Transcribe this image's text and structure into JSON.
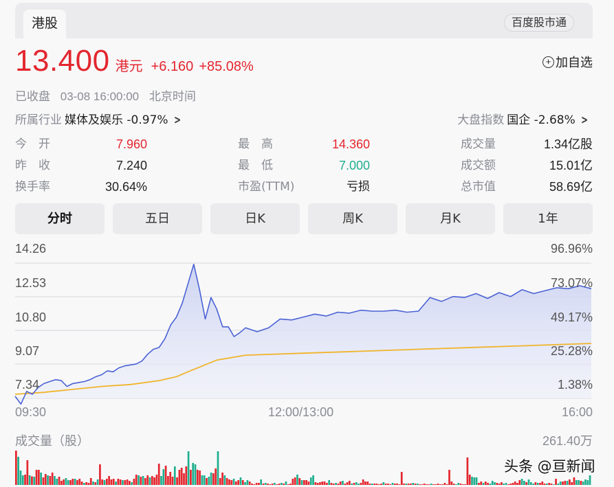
{
  "header": {
    "market_tab": "港股",
    "source_pill": "百度股市通"
  },
  "quote": {
    "price": "13.400",
    "currency": "港元",
    "change": "+6.160",
    "change_pct": "+85.08%",
    "add_watch_icon": "plus-circle-icon",
    "add_watch_label": "加自选",
    "status": "已收盘",
    "datetime": "03-08 16:00:00",
    "timezone": "北京时间"
  },
  "industry": {
    "label": "所属行业",
    "name": "媒体及娱乐",
    "change": "-0.97%"
  },
  "market_index": {
    "label": "大盘指数",
    "name": "国企",
    "change": "-2.68%"
  },
  "stats": [
    {
      "key": "今　开",
      "value": "7.960",
      "color": "red"
    },
    {
      "key": "最　高",
      "value": "14.360",
      "color": "red"
    },
    {
      "key": "成交量",
      "value": "1.34亿股",
      "color": "dark"
    },
    {
      "key": "昨　收",
      "value": "7.240",
      "color": "dark"
    },
    {
      "key": "最　低",
      "value": "7.000",
      "color": "green"
    },
    {
      "key": "成交额",
      "value": "15.01亿",
      "color": "dark"
    },
    {
      "key": "换手率",
      "value": "30.64%",
      "color": "dark"
    },
    {
      "key": "市盈(TTM)",
      "value": "亏损",
      "color": "dark"
    },
    {
      "key": "总市值",
      "value": "58.69亿",
      "color": "dark"
    }
  ],
  "periods": [
    {
      "label": "分时",
      "active": true
    },
    {
      "label": "五日",
      "active": false
    },
    {
      "label": "日K",
      "active": false
    },
    {
      "label": "周K",
      "active": false
    },
    {
      "label": "月K",
      "active": false
    },
    {
      "label": "1年",
      "active": false
    }
  ],
  "volume": {
    "title": "成交量（股）",
    "max_label": "261.40万"
  },
  "watermark": "头条 @亘新闻",
  "colors": {
    "up": "#e3262e",
    "down": "#1fae8d",
    "price_line": "#4a62d4",
    "avg_line": "#f0b429",
    "fill": "#dfe3f6"
  },
  "chart_data": {
    "type": "line",
    "title": "分时",
    "x_ticks": [
      "09:30",
      "12:00/13:00",
      "16:00"
    ],
    "y_ticks_left": [
      "14.26",
      "12.53",
      "10.80",
      "9.07",
      "7.34"
    ],
    "y_ticks_right": [
      "96.96%",
      "73.07%",
      "49.17%",
      "25.28%",
      "1.38%"
    ],
    "ylim": [
      7.34,
      14.26
    ],
    "grid": true,
    "series": [
      {
        "name": "价格",
        "x": [
          0,
          0.01,
          0.02,
          0.03,
          0.04,
          0.05,
          0.06,
          0.07,
          0.08,
          0.09,
          0.1,
          0.11,
          0.12,
          0.13,
          0.14,
          0.15,
          0.16,
          0.17,
          0.18,
          0.19,
          0.2,
          0.21,
          0.22,
          0.23,
          0.24,
          0.25,
          0.26,
          0.27,
          0.28,
          0.29,
          0.3,
          0.31,
          0.32,
          0.33,
          0.34,
          0.35,
          0.36,
          0.37,
          0.38,
          0.39,
          0.4,
          0.42,
          0.44,
          0.46,
          0.48,
          0.5,
          0.52,
          0.54,
          0.56,
          0.58,
          0.6,
          0.62,
          0.64,
          0.66,
          0.68,
          0.7,
          0.72,
          0.74,
          0.76,
          0.78,
          0.8,
          0.82,
          0.84,
          0.86,
          0.88,
          0.9,
          0.92,
          0.94,
          0.96,
          0.98,
          1.0
        ],
        "values": [
          7.45,
          7.05,
          7.7,
          7.55,
          7.9,
          8.1,
          8.2,
          8.3,
          8.25,
          7.95,
          8.1,
          8.15,
          8.2,
          8.3,
          8.45,
          8.55,
          8.75,
          8.7,
          8.9,
          9.0,
          9.05,
          9.1,
          9.25,
          9.6,
          9.85,
          9.95,
          10.4,
          11.1,
          11.5,
          12.2,
          13.2,
          14.2,
          12.9,
          11.4,
          12.5,
          11.9,
          11.0,
          11.0,
          10.5,
          10.7,
          10.95,
          10.75,
          10.95,
          11.4,
          11.35,
          11.5,
          11.65,
          11.55,
          11.75,
          11.7,
          11.85,
          11.8,
          11.8,
          11.85,
          11.75,
          11.8,
          12.5,
          12.3,
          12.55,
          12.5,
          12.7,
          12.45,
          12.75,
          12.55,
          12.9,
          12.7,
          12.85,
          13.0,
          12.95,
          13.1,
          12.95
        ]
      },
      {
        "name": "均价",
        "x": [
          0,
          0.05,
          0.1,
          0.15,
          0.2,
          0.25,
          0.28,
          0.3,
          0.35,
          0.4,
          0.5,
          0.6,
          0.7,
          0.8,
          0.9,
          1.0
        ],
        "values": [
          7.55,
          7.65,
          7.8,
          7.95,
          8.05,
          8.25,
          8.45,
          8.7,
          9.3,
          9.55,
          9.65,
          9.75,
          9.85,
          9.95,
          10.05,
          10.15
        ]
      }
    ],
    "volume_bars_max": "261.40万",
    "volume_bars": [
      [
        100,
        "u"
      ],
      [
        82,
        "d"
      ],
      [
        42,
        "d"
      ],
      [
        28,
        "d"
      ],
      [
        30,
        "u"
      ],
      [
        72,
        "u"
      ],
      [
        28,
        "d"
      ],
      [
        25,
        "u"
      ],
      [
        24,
        "d"
      ],
      [
        44,
        "u"
      ],
      [
        44,
        "u"
      ],
      [
        36,
        "d"
      ],
      [
        22,
        "u"
      ],
      [
        32,
        "u"
      ],
      [
        28,
        "d"
      ],
      [
        26,
        "u"
      ],
      [
        36,
        "u"
      ],
      [
        26,
        "d"
      ],
      [
        18,
        "d"
      ],
      [
        24,
        "u"
      ],
      [
        12,
        "u"
      ],
      [
        16,
        "u"
      ],
      [
        20,
        "d"
      ],
      [
        14,
        "d"
      ],
      [
        14,
        "u"
      ],
      [
        18,
        "u"
      ],
      [
        18,
        "d"
      ],
      [
        14,
        "u"
      ],
      [
        18,
        "u"
      ],
      [
        10,
        "u"
      ],
      [
        6,
        "d"
      ],
      [
        8,
        "u"
      ],
      [
        6,
        "u"
      ],
      [
        20,
        "u"
      ],
      [
        10,
        "d"
      ],
      [
        8,
        "u"
      ],
      [
        16,
        "d"
      ],
      [
        60,
        "u"
      ],
      [
        16,
        "u"
      ],
      [
        14,
        "d"
      ],
      [
        18,
        "u"
      ],
      [
        26,
        "u"
      ],
      [
        16,
        "u"
      ],
      [
        18,
        "u"
      ],
      [
        10,
        "d"
      ],
      [
        18,
        "u"
      ],
      [
        16,
        "u"
      ],
      [
        14,
        "d"
      ],
      [
        14,
        "u"
      ],
      [
        16,
        "u"
      ],
      [
        12,
        "u"
      ],
      [
        8,
        "d"
      ],
      [
        18,
        "u"
      ],
      [
        30,
        "u"
      ],
      [
        28,
        "d"
      ],
      [
        24,
        "u"
      ],
      [
        26,
        "d"
      ],
      [
        20,
        "u"
      ],
      [
        28,
        "u"
      ],
      [
        22,
        "d"
      ],
      [
        26,
        "u"
      ],
      [
        22,
        "u"
      ],
      [
        30,
        "u"
      ],
      [
        62,
        "u"
      ],
      [
        26,
        "d"
      ],
      [
        46,
        "d"
      ],
      [
        56,
        "u"
      ],
      [
        26,
        "u"
      ],
      [
        38,
        "u"
      ],
      [
        24,
        "u"
      ],
      [
        54,
        "d"
      ],
      [
        22,
        "u"
      ],
      [
        44,
        "u"
      ],
      [
        50,
        "u"
      ],
      [
        34,
        "u"
      ],
      [
        54,
        "u"
      ],
      [
        98,
        "d"
      ],
      [
        44,
        "u"
      ],
      [
        64,
        "d"
      ],
      [
        60,
        "d"
      ],
      [
        44,
        "u"
      ],
      [
        42,
        "u"
      ],
      [
        28,
        "d"
      ],
      [
        28,
        "d"
      ],
      [
        20,
        "u"
      ],
      [
        24,
        "d"
      ],
      [
        36,
        "d"
      ],
      [
        34,
        "u"
      ],
      [
        48,
        "u"
      ],
      [
        98,
        "d"
      ],
      [
        20,
        "u"
      ],
      [
        36,
        "u"
      ],
      [
        28,
        "d"
      ],
      [
        20,
        "u"
      ],
      [
        16,
        "u"
      ],
      [
        14,
        "u"
      ],
      [
        18,
        "d"
      ],
      [
        10,
        "u"
      ],
      [
        14,
        "u"
      ],
      [
        22,
        "d"
      ],
      [
        14,
        "u"
      ],
      [
        8,
        "d"
      ],
      [
        14,
        "d"
      ],
      [
        10,
        "u"
      ],
      [
        4,
        "u"
      ],
      [
        2,
        "u"
      ],
      [
        6,
        "u"
      ],
      [
        6,
        "u"
      ],
      [
        16,
        "d"
      ],
      [
        4,
        "u"
      ],
      [
        6,
        "d"
      ],
      [
        4,
        "u"
      ],
      [
        2,
        "u"
      ],
      [
        4,
        "u"
      ],
      [
        6,
        "d"
      ],
      [
        2,
        "u"
      ],
      [
        4,
        "u"
      ],
      [
        6,
        "d"
      ],
      [
        4,
        "u"
      ],
      [
        10,
        "d"
      ],
      [
        2,
        "u"
      ],
      [
        4,
        "u"
      ],
      [
        18,
        "u"
      ],
      [
        22,
        "u"
      ],
      [
        30,
        "d"
      ],
      [
        20,
        "u"
      ],
      [
        14,
        "d"
      ],
      [
        14,
        "u"
      ],
      [
        14,
        "u"
      ],
      [
        10,
        "u"
      ],
      [
        22,
        "d"
      ],
      [
        28,
        "d"
      ],
      [
        8,
        "u"
      ],
      [
        6,
        "u"
      ],
      [
        8,
        "u"
      ],
      [
        10,
        "u"
      ],
      [
        10,
        "u"
      ],
      [
        6,
        "u"
      ],
      [
        14,
        "d"
      ],
      [
        6,
        "u"
      ],
      [
        4,
        "u"
      ],
      [
        6,
        "d"
      ],
      [
        4,
        "u"
      ],
      [
        10,
        "u"
      ],
      [
        12,
        "d"
      ],
      [
        4,
        "u"
      ],
      [
        8,
        "u"
      ],
      [
        12,
        "u"
      ],
      [
        4,
        "d"
      ],
      [
        6,
        "u"
      ],
      [
        8,
        "d"
      ],
      [
        4,
        "d"
      ],
      [
        6,
        "u"
      ],
      [
        16,
        "u"
      ],
      [
        10,
        "u"
      ],
      [
        10,
        "u"
      ],
      [
        4,
        "u"
      ],
      [
        4,
        "d"
      ],
      [
        4,
        "u"
      ],
      [
        4,
        "u"
      ],
      [
        2,
        "u"
      ],
      [
        4,
        "u"
      ],
      [
        8,
        "d"
      ],
      [
        4,
        "u"
      ],
      [
        4,
        "u"
      ],
      [
        2,
        "u"
      ],
      [
        6,
        "d"
      ],
      [
        4,
        "u"
      ],
      [
        4,
        "u"
      ],
      [
        2,
        "u"
      ],
      [
        38,
        "u"
      ],
      [
        4,
        "u"
      ],
      [
        4,
        "d"
      ],
      [
        4,
        "u"
      ],
      [
        4,
        "u"
      ],
      [
        6,
        "d"
      ],
      [
        4,
        "u"
      ],
      [
        4,
        "d"
      ],
      [
        2,
        "u"
      ],
      [
        2,
        "u"
      ],
      [
        4,
        "u"
      ],
      [
        2,
        "u"
      ],
      [
        2,
        "u"
      ],
      [
        4,
        "d"
      ],
      [
        2,
        "u"
      ],
      [
        2,
        "u"
      ],
      [
        4,
        "u"
      ],
      [
        2,
        "u"
      ],
      [
        2,
        "u"
      ],
      [
        6,
        "u"
      ],
      [
        2,
        "u"
      ],
      [
        44,
        "u"
      ],
      [
        10,
        "u"
      ],
      [
        4,
        "u"
      ],
      [
        2,
        "d"
      ],
      [
        6,
        "d"
      ],
      [
        4,
        "u"
      ],
      [
        2,
        "u"
      ],
      [
        2,
        "u"
      ],
      [
        80,
        "u"
      ],
      [
        30,
        "u"
      ],
      [
        24,
        "d"
      ],
      [
        22,
        "d"
      ],
      [
        22,
        "d"
      ],
      [
        6,
        "u"
      ],
      [
        10,
        "u"
      ],
      [
        6,
        "d"
      ],
      [
        10,
        "u"
      ],
      [
        6,
        "u"
      ],
      [
        4,
        "d"
      ],
      [
        12,
        "d"
      ],
      [
        8,
        "d"
      ],
      [
        6,
        "u"
      ],
      [
        4,
        "u"
      ],
      [
        8,
        "u"
      ],
      [
        4,
        "d"
      ],
      [
        6,
        "d"
      ],
      [
        2,
        "u"
      ],
      [
        4,
        "u"
      ],
      [
        6,
        "u"
      ],
      [
        10,
        "u"
      ],
      [
        6,
        "u"
      ],
      [
        14,
        "u"
      ],
      [
        18,
        "d"
      ],
      [
        12,
        "d"
      ],
      [
        8,
        "u"
      ],
      [
        16,
        "d"
      ],
      [
        8,
        "d"
      ],
      [
        4,
        "d"
      ],
      [
        8,
        "u"
      ],
      [
        6,
        "d"
      ],
      [
        6,
        "u"
      ],
      [
        10,
        "u"
      ],
      [
        4,
        "u"
      ],
      [
        4,
        "d"
      ],
      [
        6,
        "u"
      ],
      [
        4,
        "u"
      ],
      [
        2,
        "d"
      ],
      [
        18,
        "u"
      ],
      [
        4,
        "d"
      ],
      [
        10,
        "d"
      ],
      [
        10,
        "u"
      ],
      [
        12,
        "u"
      ],
      [
        12,
        "d"
      ],
      [
        16,
        "u"
      ],
      [
        8,
        "u"
      ],
      [
        22,
        "u"
      ],
      [
        14,
        "d"
      ],
      [
        14,
        "d"
      ],
      [
        12,
        "u"
      ],
      [
        10,
        "d"
      ],
      [
        16,
        "d"
      ],
      [
        14,
        "d"
      ],
      [
        28,
        "d"
      ]
    ]
  }
}
